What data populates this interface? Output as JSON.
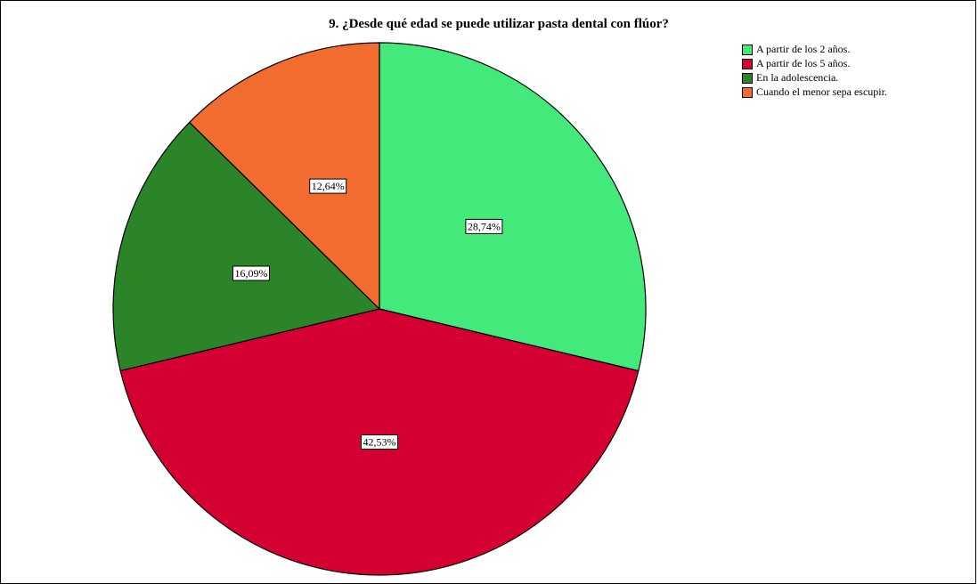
{
  "chart_data": {
    "type": "pie",
    "title": "9. ¿Desde qué edad se puede utilizar pasta dental con flúor?",
    "categories": [
      "A partir de los 2 años.",
      "A partir de los 5 años.",
      "En la adolescencia.",
      "Cuando el menor sepa escupir."
    ],
    "values": [
      28.74,
      42.53,
      16.09,
      12.64
    ],
    "value_labels": [
      "28,74%",
      "42,53%",
      "16,09%",
      "12,64%"
    ],
    "colors": [
      "#43e97b",
      "#d50032",
      "#2b8528",
      "#f26b2f"
    ],
    "start_angle": "12 o'clock",
    "direction": "clockwise",
    "legend_position": "top-right"
  }
}
